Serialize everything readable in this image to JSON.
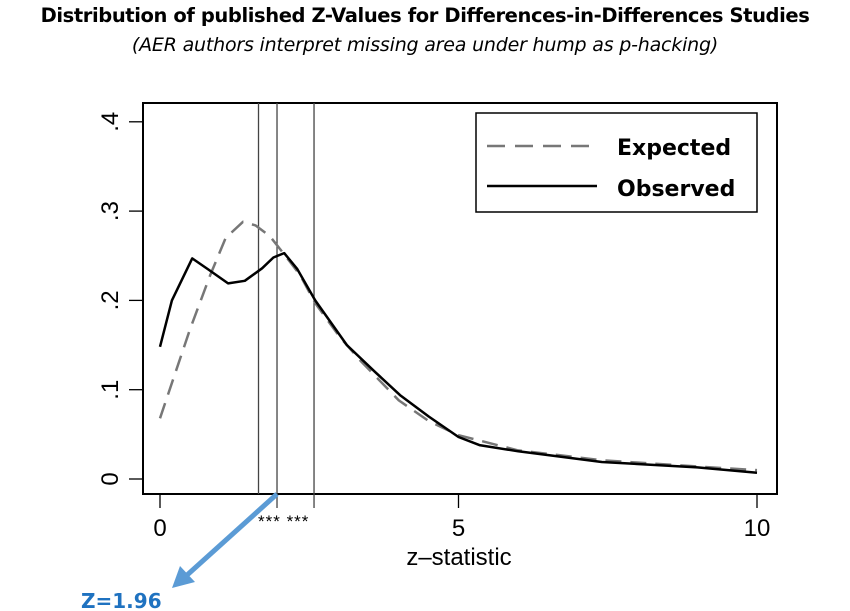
{
  "chart_data": {
    "type": "line",
    "title": "Distribution of published Z-Values for Differences-in-Differences Studies",
    "subtitle": "(AER authors interpret missing area under hump as p-hacking)",
    "xlabel": "z–statistic",
    "ylabel": "",
    "xlim": [
      0,
      10
    ],
    "ylim": [
      0,
      0.4
    ],
    "xticks": [
      {
        "v": 0,
        "label": "0"
      },
      {
        "v": 5,
        "label": "5"
      },
      {
        "v": 10,
        "label": "10"
      }
    ],
    "yticks": [
      {
        "v": 0,
        "label": "0"
      },
      {
        "v": 0.1,
        "label": ".1"
      },
      {
        "v": 0.2,
        "label": ".2"
      },
      {
        "v": 0.3,
        "label": ".3"
      },
      {
        "v": 0.4,
        "label": ".4"
      }
    ],
    "grid": false,
    "legend_position": "top-right",
    "vlines": [
      1.65,
      1.96,
      2.58
    ],
    "significance_marks": "*** ***",
    "series": [
      {
        "name": "Expected",
        "style": "dashed",
        "color": "#777777",
        "x": [
          0,
          0.5,
          0.84,
          1.1,
          1.39,
          1.6,
          1.84,
          2.1,
          2.35,
          2.6,
          3.0,
          3.35,
          4.0,
          4.5,
          5,
          6,
          7.4,
          9,
          10
        ],
        "y": [
          0.068,
          0.167,
          0.228,
          0.27,
          0.288,
          0.284,
          0.272,
          0.25,
          0.228,
          0.197,
          0.16,
          0.133,
          0.088,
          0.065,
          0.049,
          0.032,
          0.021,
          0.014,
          0.01
        ]
      },
      {
        "name": "Observed",
        "style": "solid",
        "color": "#000000",
        "x": [
          0,
          0.2,
          0.54,
          0.8,
          1.14,
          1.42,
          1.71,
          1.9,
          2.08,
          2.3,
          2.6,
          3.13,
          3.6,
          4.02,
          4.5,
          5,
          5.35,
          6.0,
          7.4,
          9,
          10
        ],
        "y": [
          0.148,
          0.2,
          0.247,
          0.235,
          0.219,
          0.222,
          0.236,
          0.248,
          0.253,
          0.235,
          0.2,
          0.15,
          0.12,
          0.094,
          0.07,
          0.047,
          0.038,
          0.031,
          0.019,
          0.013,
          0.007
        ]
      }
    ],
    "annotation": {
      "label": "Z=1.96",
      "color": "#5b9bd5",
      "points_to": 1.96
    }
  }
}
